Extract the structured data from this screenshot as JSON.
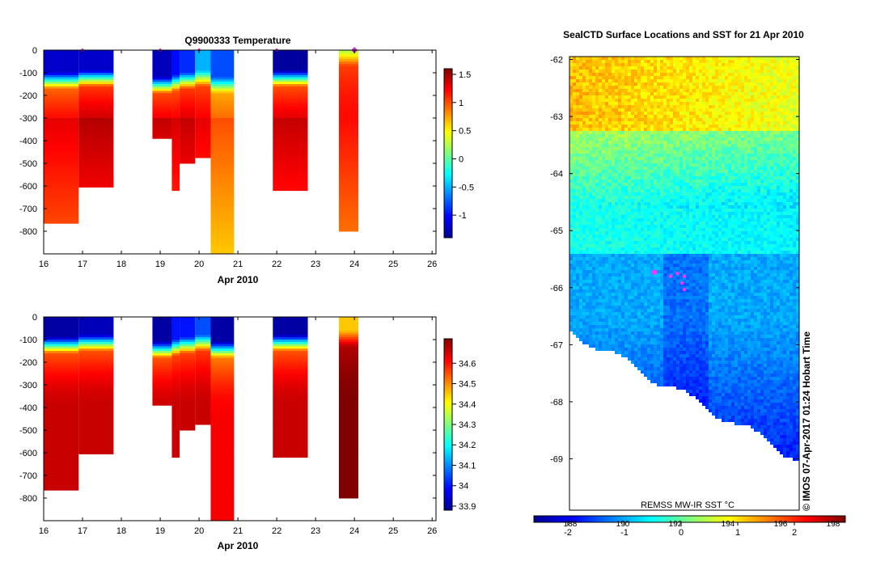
{
  "chart_data": [
    {
      "type": "heatmap",
      "title": "Q9900333  Temperature",
      "xlabel": "Apr 2010",
      "x_ticks": [
        "16",
        "17",
        "18",
        "19",
        "20",
        "21",
        "22",
        "23",
        "24",
        "25",
        "26"
      ],
      "y_ticks": [
        "0",
        "-100",
        "-200",
        "-300",
        "-400",
        "-500",
        "-600",
        "-700",
        "-800"
      ],
      "xlim": [
        16,
        26.1
      ],
      "ylim": [
        -900,
        0
      ],
      "colorbar_ticks": [
        "1.5",
        "1",
        "0.5",
        "0",
        "-0.5",
        "-1"
      ],
      "colorbar_range": [
        -1.4,
        1.6
      ],
      "markers_x": [
        17,
        19,
        20,
        22,
        24
      ],
      "profiles": [
        {
          "x0": 16.0,
          "x1": 16.9,
          "depth": 765,
          "surface": -1.2,
          "thermocline": 130,
          "deep": 1.3
        },
        {
          "x0": 16.9,
          "x1": 17.8,
          "depth": 605,
          "surface": -1.2,
          "thermocline": 120,
          "deep": 1.45
        },
        {
          "x0": 18.8,
          "x1": 19.3,
          "depth": 390,
          "surface": -1.25,
          "thermocline": 150,
          "deep": 1.4
        },
        {
          "x0": 19.3,
          "x1": 19.5,
          "depth": 620,
          "surface": -1.0,
          "thermocline": 140,
          "deep": 1.35
        },
        {
          "x0": 19.5,
          "x1": 19.9,
          "depth": 500,
          "surface": -0.9,
          "thermocline": 130,
          "deep": 1.4
        },
        {
          "x0": 19.9,
          "x1": 20.3,
          "depth": 475,
          "surface": -0.5,
          "thermocline": 120,
          "deep": 1.3
        },
        {
          "x0": 20.3,
          "x1": 20.9,
          "depth": 900,
          "surface": -0.8,
          "thermocline": 150,
          "deep": 1.0
        },
        {
          "x0": 21.9,
          "x1": 22.8,
          "depth": 620,
          "surface": -1.35,
          "thermocline": 120,
          "deep": 1.4
        },
        {
          "x0": 23.6,
          "x1": 24.1,
          "depth": 800,
          "surface": 0.2,
          "thermocline": 30,
          "deep": 1.2
        }
      ]
    },
    {
      "type": "heatmap",
      "title": "",
      "xlabel": "Apr 2010",
      "x_ticks": [
        "16",
        "17",
        "18",
        "19",
        "20",
        "21",
        "22",
        "23",
        "24",
        "25",
        "26"
      ],
      "y_ticks": [
        "0",
        "-100",
        "-200",
        "-300",
        "-400",
        "-500",
        "-600",
        "-700",
        "-800"
      ],
      "xlim": [
        16,
        26.1
      ],
      "ylim": [
        -900,
        0
      ],
      "colorbar_ticks": [
        "34.6",
        "34.5",
        "34.4",
        "34.3",
        "34.2",
        "34.1",
        "34",
        "33.9"
      ],
      "colorbar_range": [
        33.88,
        34.72
      ],
      "profiles": [
        {
          "x0": 16.0,
          "x1": 16.9,
          "depth": 765,
          "surface": 33.9,
          "halocline": 120,
          "deep": 34.66
        },
        {
          "x0": 16.9,
          "x1": 17.8,
          "depth": 605,
          "surface": 33.92,
          "halocline": 110,
          "deep": 34.66
        },
        {
          "x0": 18.8,
          "x1": 19.3,
          "depth": 390,
          "surface": 33.9,
          "halocline": 140,
          "deep": 34.66
        },
        {
          "x0": 19.3,
          "x1": 19.5,
          "depth": 620,
          "surface": 34.0,
          "halocline": 130,
          "deep": 34.66
        },
        {
          "x0": 19.5,
          "x1": 19.9,
          "depth": 500,
          "surface": 34.0,
          "halocline": 120,
          "deep": 34.66
        },
        {
          "x0": 19.9,
          "x1": 20.3,
          "depth": 475,
          "surface": 34.05,
          "halocline": 110,
          "deep": 34.66
        },
        {
          "x0": 20.3,
          "x1": 20.9,
          "depth": 900,
          "surface": 33.9,
          "halocline": 140,
          "deep": 34.62
        },
        {
          "x0": 21.9,
          "x1": 22.8,
          "depth": 620,
          "surface": 33.9,
          "halocline": 110,
          "deep": 34.66
        },
        {
          "x0": 23.6,
          "x1": 24.1,
          "depth": 800,
          "surface": 34.45,
          "halocline": 90,
          "deep": 34.72
        }
      ]
    },
    {
      "type": "heatmap",
      "title": "SealCTD Surface Locations and SST for 21 Apr 2010",
      "y_ticks": [
        "-62",
        "-63",
        "-64",
        "-65",
        "-66",
        "-67",
        "-68",
        "-69"
      ],
      "ylim": [
        -69.9,
        -61.95
      ],
      "bottom_label": "REMSS MW-IR SST °C",
      "side_label": "© IMOS 07-Apr-2017 01:24 Hobart Time",
      "colorbar_ticks_lower": [
        "-2",
        "-1",
        "0",
        "1",
        "2"
      ],
      "colorbar_ticks_upper": [
        "188",
        "190",
        "192",
        "194",
        "196",
        "198"
      ],
      "colorbar_range": [
        -2.6,
        2.9
      ],
      "positions": [
        {
          "x": 0.37,
          "y": -65.73
        },
        {
          "x": 0.44,
          "y": -65.8
        },
        {
          "x": 0.47,
          "y": -65.75
        },
        {
          "x": 0.5,
          "y": -65.8
        },
        {
          "x": 0.49,
          "y": -65.92
        },
        {
          "x": 0.5,
          "y": -66.03
        }
      ]
    }
  ]
}
